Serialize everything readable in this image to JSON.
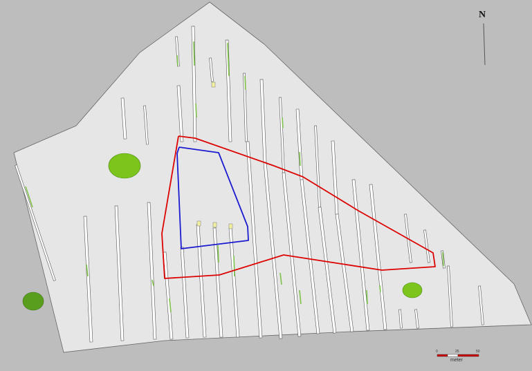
{
  "map": {
    "north_arrow_label": "N",
    "scale_bar": {
      "ticks": [
        "0",
        "25",
        "50"
      ],
      "unit": "meter",
      "colors": [
        "#cc0000",
        "#ffffff",
        "#cc0000"
      ]
    },
    "colors": {
      "background": "#bdbdbd",
      "site_area": "#e6e6e6",
      "site_outline": "#666666",
      "trench_fill": "#ffffff",
      "trench_stroke": "#555555",
      "feature_green": "#7ec24a",
      "tree_light": "#7cc51d",
      "tree_dark": "#5a9e1e",
      "outline_red": "#dd0000",
      "outline_blue": "#1a1ad0",
      "marker_yellow": "#f2f0a0"
    }
  }
}
